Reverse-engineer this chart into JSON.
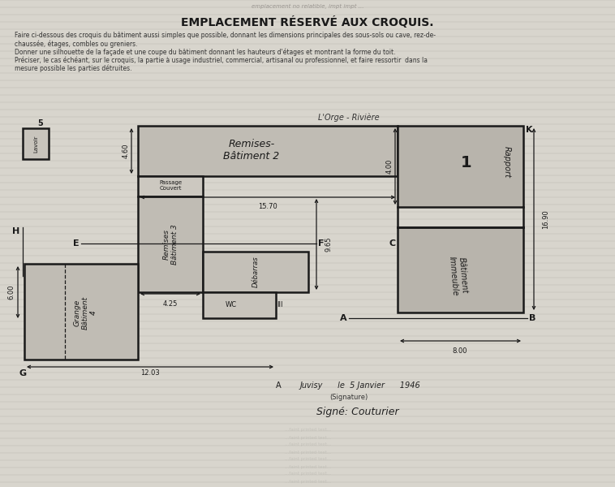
{
  "title": "EMPLACEMENT RÉSERVÉ AUX CROQUIS.",
  "sub1": "Faire ci-dessous des croquis du bâtiment aussi simples que possible, donnant les dimensions principales des sous-sols ou cave, rez-de-",
  "sub2": "chaussée, étages, combles ou greniers.",
  "sub3": "Donner une silhouette de la façade et une coupe du bâtiment donnant les hauteurs d'étages et montrant la forme du toit.",
  "sub4": "Préciser, le cas échéant, sur le croquis, la partie à usage industriel, commercial, artisanal ou professionnel, et faire ressortir  dans la",
  "sub5": "mesure possible les parties détruites.",
  "bg_color": "#d8d5cd",
  "fill_light": "#c0bcb4",
  "fill_dark": "#b0aca4",
  "edge_color": "#1a1a1a",
  "lw": 1.8,
  "label_lorge": "L'Orge - Rivière",
  "label_bat2": "Remises-\nBâtiment 2",
  "label_bat3": "Remises\nBâtiment 3",
  "label_bat4": "Grange\nBâtiment\n4",
  "label_debarras": "Débarras",
  "label_lavoir": "Lavoir",
  "label_num5": "5",
  "label_passage": "Passage\nCouvert",
  "label_wc": "WC",
  "label_immeuble": "Bâtiment\nImmeuble",
  "label_rapport": "1\nRapport",
  "dim_460": "4.60",
  "dim_1570": "15.70",
  "dim_425": "4.25",
  "dim_965": "9.65",
  "dim_600": "6.00",
  "dim_1203": "12.03",
  "dim_800": "8.00",
  "dim_1690": "16.90",
  "dim_400": "4.00",
  "sig1": "Juvisy      le  5 Janvier      1946",
  "sig2": "(Signature)",
  "sig3": "Signé: Couturier"
}
